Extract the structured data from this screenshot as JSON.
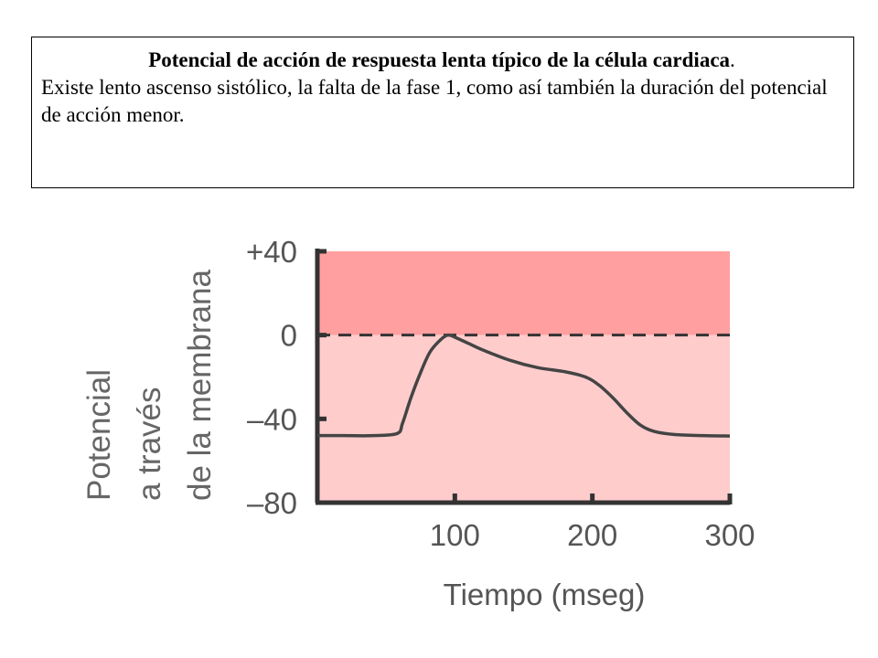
{
  "caption": {
    "title": "Potencial de acción de respuesta lenta típico de la célula cardiaca",
    "title_end": ".",
    "body": "Existe lento ascenso sistólico, la falta de la fase 1, como así también la duración del potencial de acción menor."
  },
  "chart_data": {
    "type": "line",
    "title": "",
    "xlabel": "Tiempo (mseg)",
    "ylabel_lines": [
      "Potencial",
      "a través",
      "de la membrana"
    ],
    "xlim": [
      0,
      300
    ],
    "ylim": [
      -80,
      40
    ],
    "x_ticks": [
      100,
      200,
      300
    ],
    "x_tick_labels": [
      "100",
      "200",
      "300"
    ],
    "y_ticks": [
      40,
      0,
      -40,
      -80
    ],
    "y_tick_labels": [
      "+40",
      "0",
      "–40",
      "–80"
    ],
    "reference_line": {
      "y": 0,
      "style": "dashed"
    },
    "shaded_bands": [
      {
        "from": 0,
        "to": 40,
        "color": "#ff9f9f"
      },
      {
        "from": -80,
        "to": 0,
        "color": "#ffcccc"
      }
    ],
    "line_color": "#444444",
    "series": [
      {
        "x": [
          0,
          20,
          40,
          58,
          62,
          68,
          75,
          82,
          90,
          95,
          100,
          110,
          120,
          140,
          160,
          180,
          195,
          205,
          215,
          225,
          235,
          245,
          260,
          280,
          300
        ],
        "y": [
          -48,
          -48,
          -48,
          -47,
          -42,
          -30,
          -18,
          -8,
          -2,
          0,
          -1,
          -4,
          -7,
          -12,
          -15.5,
          -17.5,
          -20,
          -24,
          -30,
          -37,
          -43,
          -46,
          -47.5,
          -48,
          -48.2
        ]
      }
    ]
  }
}
